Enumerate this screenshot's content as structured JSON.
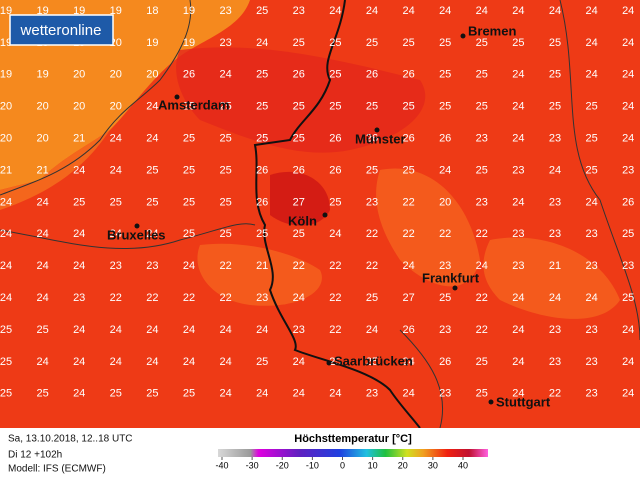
{
  "logo": "wetteronline",
  "grid_values": [
    [
      19,
      19,
      19,
      19,
      18,
      19,
      23,
      25,
      23,
      24,
      24,
      24,
      24,
      24,
      24,
      24,
      24,
      24
    ],
    [
      19,
      19,
      19,
      20,
      19,
      19,
      23,
      24,
      25,
      25,
      25,
      25,
      25,
      25,
      25,
      25,
      24,
      24
    ],
    [
      19,
      19,
      20,
      20,
      20,
      26,
      24,
      25,
      26,
      25,
      26,
      26,
      25,
      25,
      24,
      25,
      24,
      24
    ],
    [
      20,
      20,
      20,
      20,
      24,
      25,
      25,
      25,
      25,
      25,
      25,
      25,
      25,
      25,
      24,
      25,
      25,
      24
    ],
    [
      20,
      20,
      21,
      24,
      24,
      25,
      25,
      25,
      25,
      26,
      26,
      26,
      26,
      23,
      24,
      23,
      25,
      24
    ],
    [
      21,
      21,
      24,
      24,
      25,
      25,
      25,
      26,
      26,
      26,
      25,
      25,
      24,
      25,
      23,
      24,
      25,
      23
    ],
    [
      24,
      24,
      25,
      25,
      25,
      25,
      25,
      26,
      27,
      25,
      23,
      22,
      20,
      23,
      24,
      23,
      24,
      26
    ],
    [
      24,
      24,
      24,
      24,
      24,
      25,
      25,
      25,
      25,
      24,
      22,
      22,
      22,
      22,
      23,
      23,
      23,
      25
    ],
    [
      24,
      24,
      24,
      23,
      23,
      24,
      22,
      21,
      22,
      22,
      22,
      24,
      23,
      24,
      23,
      21,
      23,
      23
    ],
    [
      24,
      24,
      23,
      22,
      22,
      22,
      22,
      23,
      24,
      22,
      25,
      27,
      25,
      22,
      24,
      24,
      24,
      25
    ],
    [
      25,
      25,
      24,
      24,
      24,
      24,
      24,
      24,
      23,
      22,
      24,
      26,
      23,
      22,
      24,
      23,
      23,
      24
    ],
    [
      25,
      24,
      24,
      24,
      24,
      24,
      24,
      25,
      24,
      25,
      25,
      24,
      26,
      25,
      24,
      23,
      23,
      24
    ],
    [
      25,
      25,
      24,
      25,
      25,
      25,
      24,
      24,
      24,
      24,
      23,
      24,
      23,
      25,
      24,
      22,
      23,
      24
    ]
  ],
  "cities": [
    "Bremen",
    "Amsterdam",
    "Münster",
    "Köln",
    "Bruxelles",
    "Frankfurt",
    "Saarbrücken",
    "Stuttgart"
  ],
  "footer": {
    "date": "Sa, 13.10.2018, 12..18 UTC",
    "run": "Di 12 +102h",
    "model": "Modell: IFS (ECMWF)"
  },
  "legend": {
    "title": "Höchsttemperatur [°C]",
    "ticks": [
      -40,
      -30,
      -20,
      -10,
      0,
      10,
      20,
      30,
      40
    ]
  }
}
